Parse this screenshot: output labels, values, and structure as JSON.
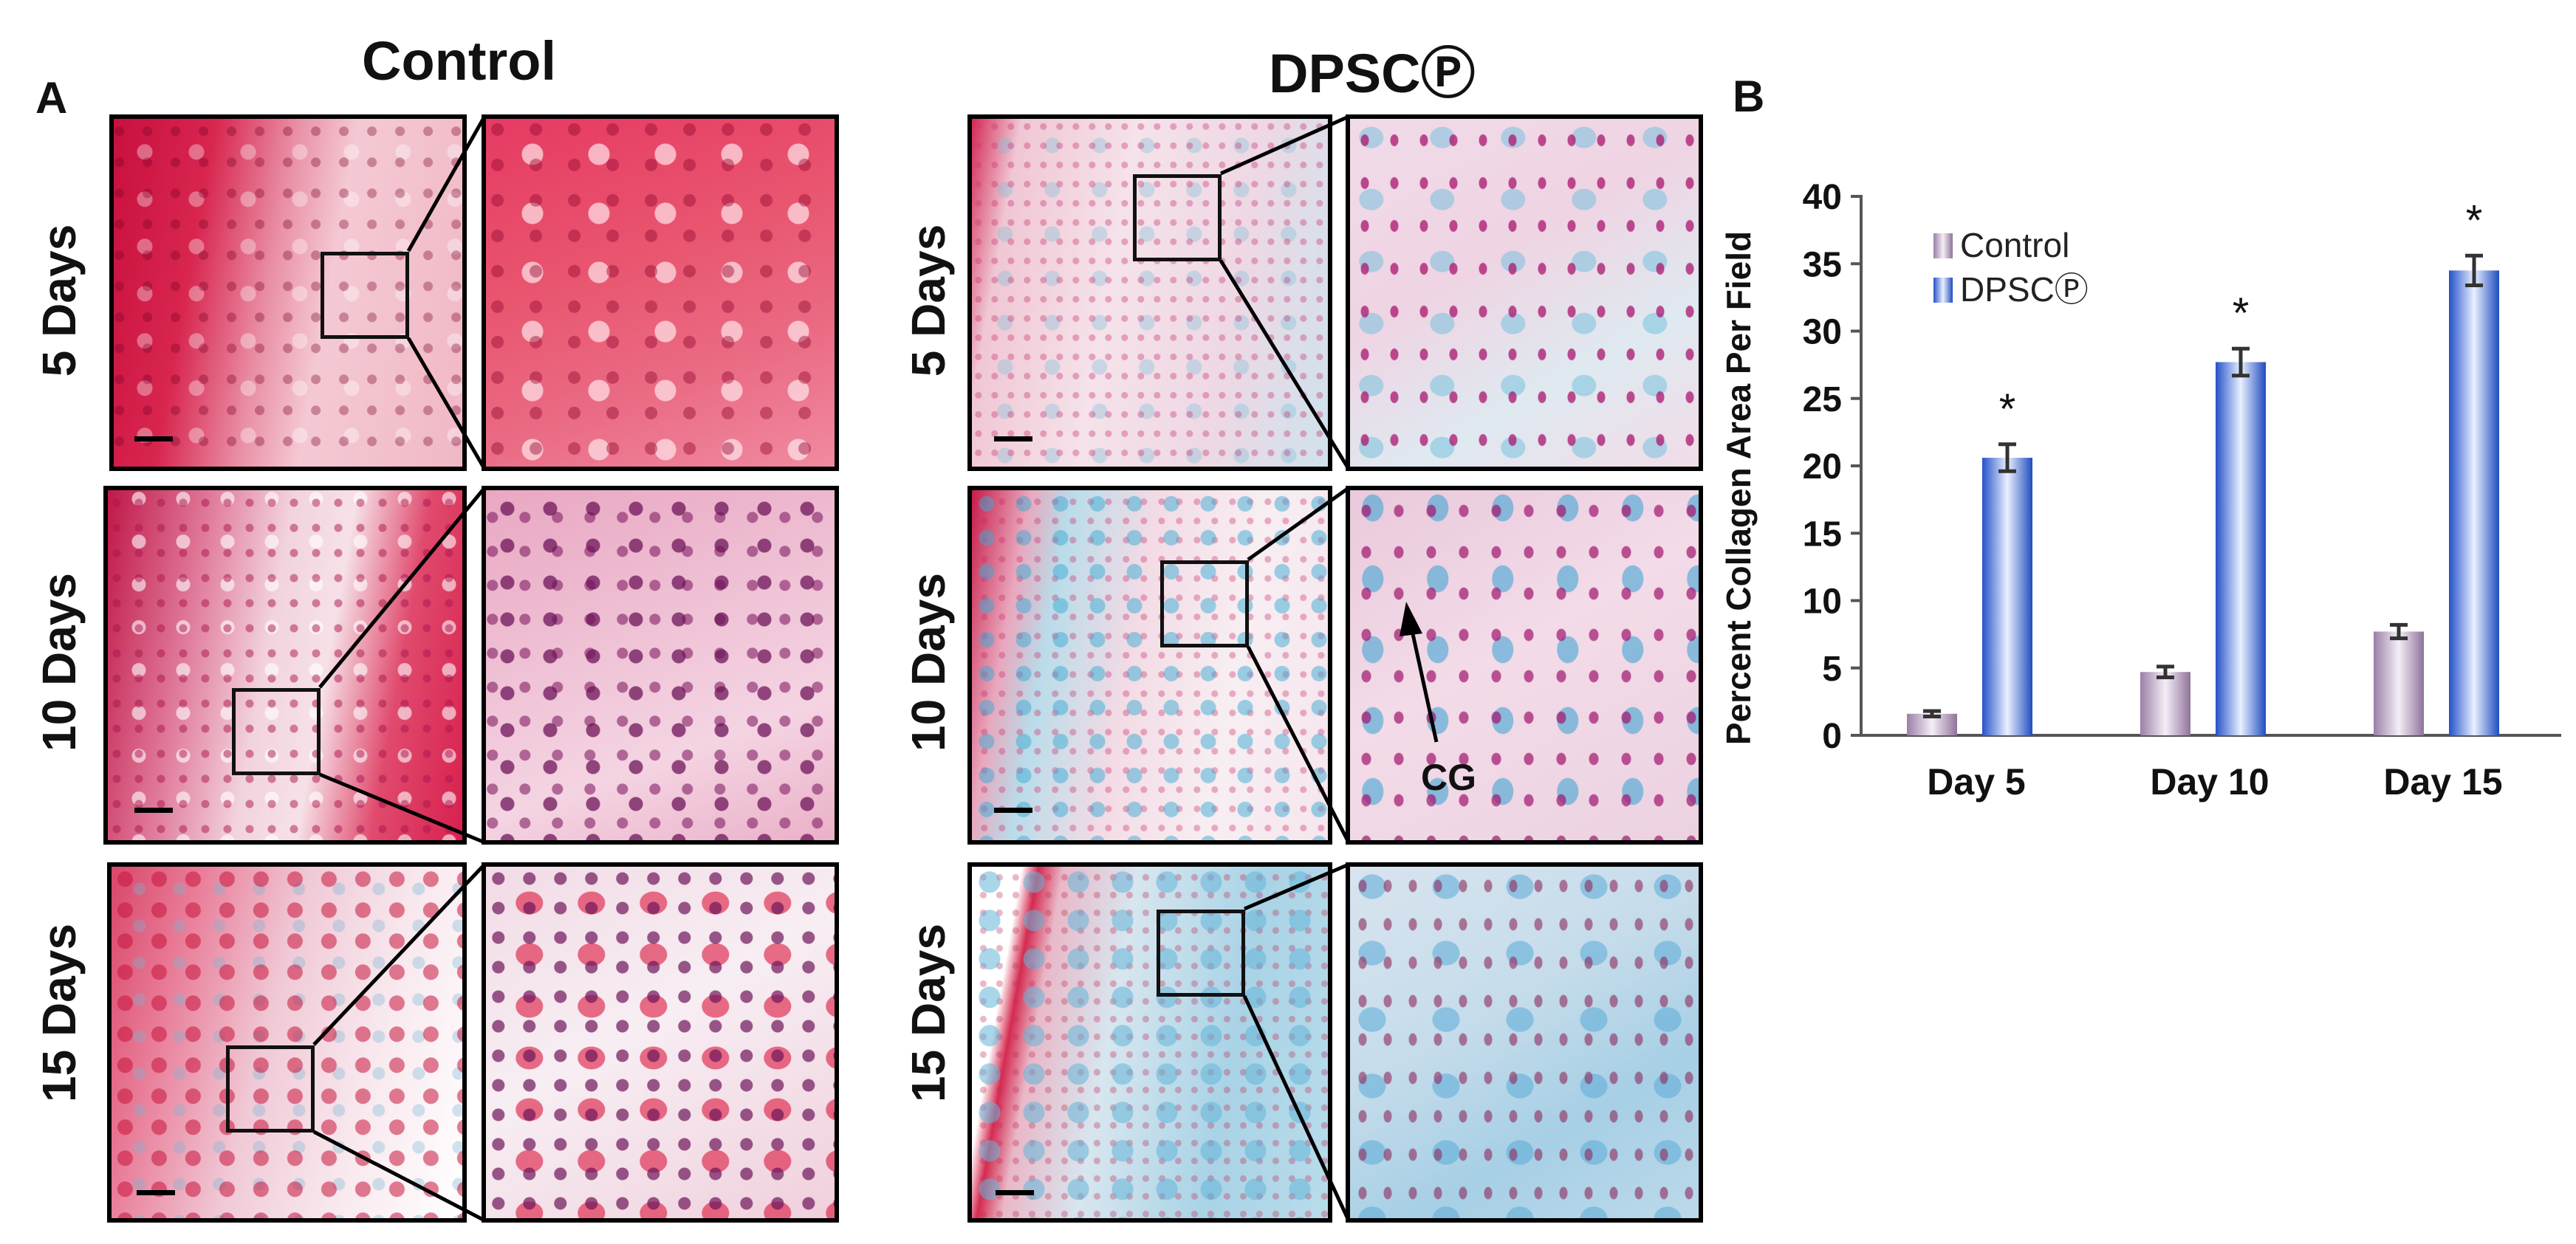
{
  "panel_a": {
    "letter": "A",
    "columns": [
      "Control",
      "DPSCⓅ"
    ],
    "rows": [
      "5 Days",
      "10 Days",
      "15 Days"
    ],
    "annotation": "CG"
  },
  "panel_b": {
    "letter": "B"
  },
  "colors": {
    "control": "#a98fb3",
    "dpsc": "#2f63d6"
  },
  "chart_data": {
    "type": "bar",
    "categories": [
      "Day 5",
      "Day 10",
      "Day 15"
    ],
    "series": [
      {
        "name": "Control",
        "values": [
          1.6,
          4.7,
          7.7
        ],
        "errors": [
          0.2,
          0.4,
          0.5
        ]
      },
      {
        "name": "DPSCⓅ",
        "values": [
          20.6,
          27.7,
          34.5
        ],
        "errors": [
          1.0,
          1.0,
          1.1
        ]
      }
    ],
    "significance_marker": "*",
    "ylabel": "Percent Collagen Area Per Field",
    "xlabel": "",
    "ylim": [
      0,
      40
    ],
    "yticks": [
      0,
      5,
      10,
      15,
      20,
      25,
      30,
      35,
      40
    ],
    "legend_position": "upper-left",
    "grid": false
  }
}
